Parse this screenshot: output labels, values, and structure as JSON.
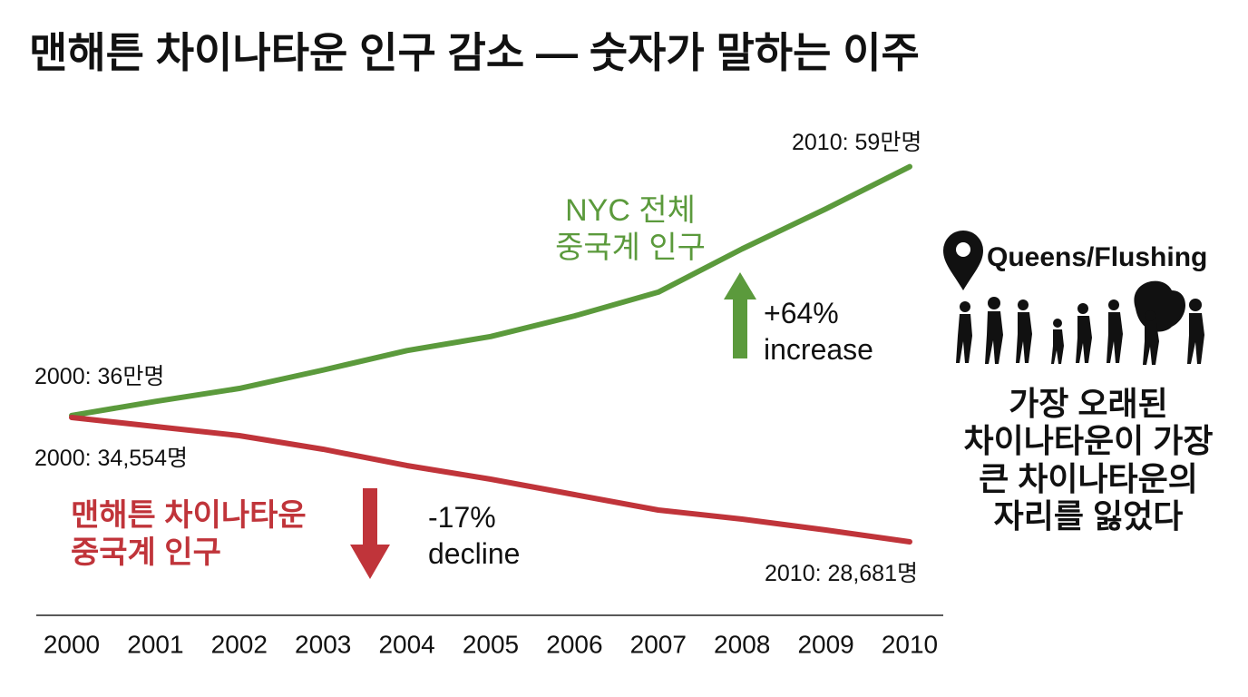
{
  "chart_data": {
    "type": "line",
    "title": "맨해튼 차이나타운 인구 감소 — 숫자가 말하는 이주",
    "x": [
      2000,
      2001,
      2002,
      2003,
      2004,
      2005,
      2006,
      2007,
      2008,
      2009,
      2010
    ],
    "xlim": [
      2000,
      2010
    ],
    "xticks": [
      2000,
      2001,
      2002,
      2003,
      2004,
      2005,
      2006,
      2007,
      2008,
      2009,
      2010
    ],
    "ylim": [
      18.2,
      63.5
    ],
    "y2lim": [
      25551,
      48701
    ],
    "series": [
      {
        "name": "NYC 전체\n중국계 인구",
        "color": "#5b9a3c",
        "values": [
          36,
          37.3,
          38.5,
          40.2,
          42.0,
          43.3,
          45.2,
          47.4,
          51.4,
          55.1,
          59
        ],
        "value_labels": [
          "2000: 36만명",
          null,
          null,
          null,
          null,
          null,
          null,
          null,
          null,
          null,
          "2010: 59만명"
        ]
      },
      {
        "name": "맨해튼 차이나타운\n중국계 인구",
        "color": "#c0343a",
        "axis": "y2",
        "values": [
          34554,
          34125,
          33697,
          33054,
          32282,
          31639,
          30910,
          30181,
          29753,
          29238,
          28681
        ],
        "value_labels": [
          "2000: 34,554명",
          null,
          null,
          null,
          null,
          null,
          null,
          null,
          null,
          null,
          "2010: 28,681명"
        ]
      }
    ],
    "annotations": [
      "+64%\nincrease",
      "-17%\ndecline",
      "Queens/Flushing",
      "가장 오래된\n차이나타운이 가장\n큰 차이나타운의\n자리를 잃었다"
    ]
  }
}
